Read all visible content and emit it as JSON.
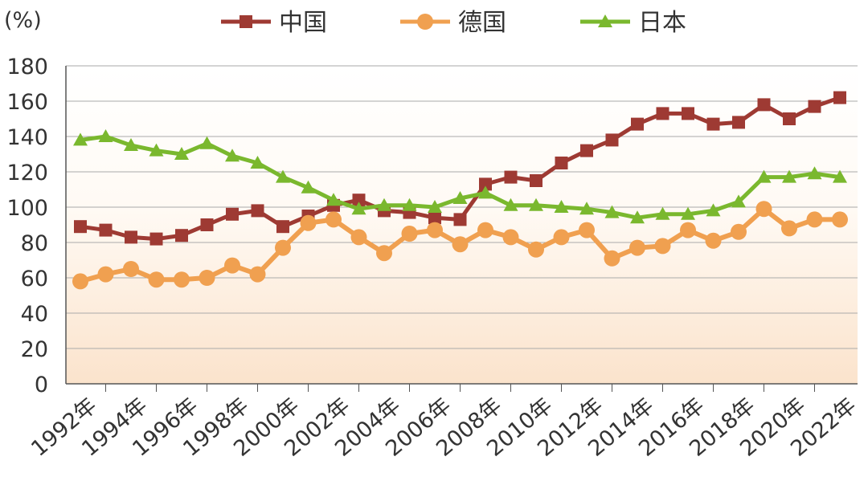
{
  "chart_data": {
    "type": "line",
    "y_label": "(%)",
    "categories": [
      "1992年",
      null,
      "1994年",
      null,
      "1996年",
      null,
      "1998年",
      null,
      "2000年",
      null,
      "2002年",
      null,
      "2004年",
      null,
      "2006年",
      null,
      "2008年",
      null,
      "2010年",
      null,
      "2012年",
      null,
      "2014年",
      null,
      "2016年",
      null,
      "2018年",
      null,
      "2020年",
      null,
      "2022年"
    ],
    "series": [
      {
        "name": "中国",
        "color": "#9e3a33",
        "marker": "square",
        "values": [
          89,
          87,
          83,
          82,
          84,
          90,
          96,
          98,
          89,
          95,
          101,
          104,
          98,
          97,
          94,
          93,
          113,
          117,
          115,
          125,
          132,
          138,
          147,
          153,
          153,
          147,
          148,
          158,
          150,
          157,
          162
        ]
      },
      {
        "name": "德国",
        "color": "#f0a050",
        "marker": "circle",
        "values": [
          58,
          62,
          65,
          59,
          59,
          60,
          67,
          62,
          77,
          91,
          93,
          83,
          74,
          85,
          87,
          79,
          87,
          83,
          76,
          83,
          87,
          71,
          77,
          78,
          87,
          81,
          86,
          99,
          88,
          93,
          93
        ]
      },
      {
        "name": "日本",
        "color": "#7ab82e",
        "marker": "triangle",
        "values": [
          138,
          140,
          135,
          132,
          130,
          136,
          129,
          125,
          117,
          111,
          104,
          99,
          101,
          101,
          100,
          105,
          108,
          101,
          101,
          100,
          99,
          97,
          94,
          96,
          96,
          98,
          103,
          117,
          117,
          119,
          117
        ]
      }
    ],
    "ylim": [
      0,
      180
    ],
    "yticks": [
      0,
      20,
      40,
      60,
      80,
      100,
      120,
      140,
      160,
      180
    ],
    "grid": true
  }
}
